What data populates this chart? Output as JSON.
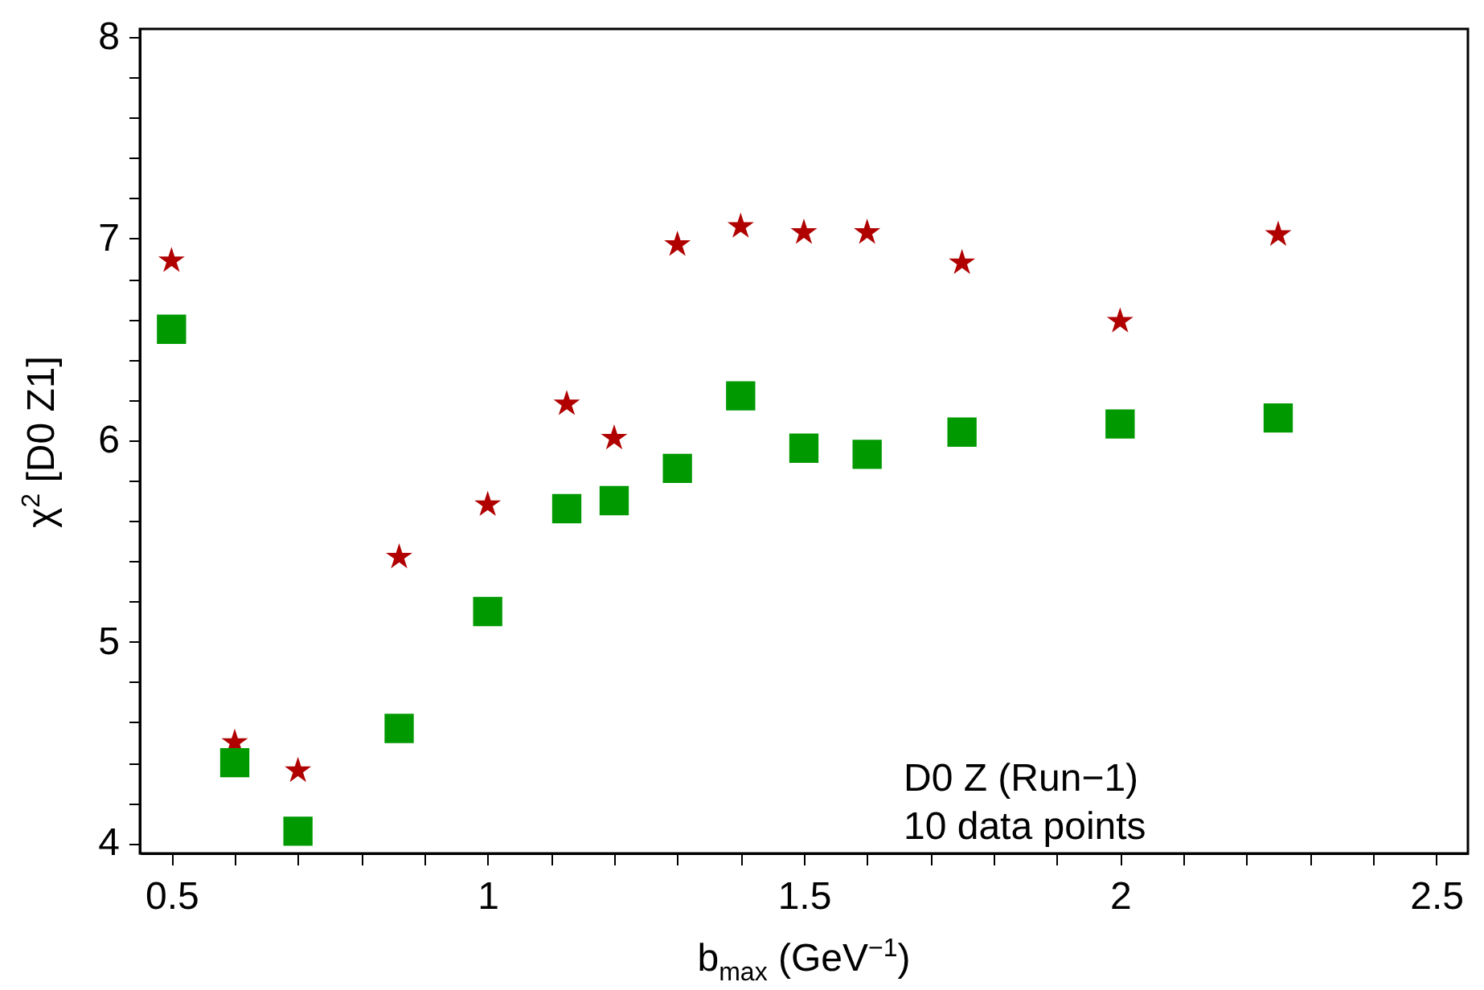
{
  "chart_data": {
    "type": "scatter",
    "xlabel": "b$_{max}$ (GeV$^{−1}$)",
    "ylabel": "χ$^{2}$ [D0 Z1]",
    "annotations": [
      "D0 Z (Run−1)",
      "10 data points"
    ],
    "x": [
      0.5,
      0.6,
      0.7,
      0.86,
      1.0,
      1.125,
      1.2,
      1.3,
      1.4,
      1.5,
      1.6,
      1.75,
      2.0,
      2.25
    ],
    "series": [
      {
        "color": "#b00000",
        "marker": "star",
        "values": [
          6.89,
          4.5,
          4.36,
          5.42,
          5.68,
          6.18,
          6.01,
          6.97,
          7.06,
          7.03,
          7.03,
          6.88,
          6.59,
          7.02
        ]
      },
      {
        "color": "#009900",
        "marker": "square",
        "values": [
          6.55,
          4.4,
          4.06,
          4.57,
          5.15,
          5.66,
          5.7,
          5.86,
          6.22,
          5.96,
          5.93,
          6.04,
          6.08,
          6.11
        ]
      }
    ],
    "xlim": [
      0.45,
      2.55
    ],
    "ylim": [
      3.95,
      8.04
    ],
    "xticks": [
      0.5,
      {
        "value": 0.6,
        "label": null
      },
      {
        "value": 0.7,
        "label": null
      },
      {
        "value": 0.8,
        "label": null
      },
      {
        "value": 0.9,
        "label": null
      },
      1,
      {
        "value": 1.1,
        "label": null
      },
      {
        "value": 1.2,
        "label": null
      },
      {
        "value": 1.3,
        "label": null
      },
      {
        "value": 1.4,
        "label": null
      },
      1.5,
      {
        "value": 1.6,
        "label": null
      },
      {
        "value": 1.7,
        "label": null
      },
      {
        "value": 1.8,
        "label": null
      },
      {
        "value": 1.9,
        "label": null
      },
      2,
      {
        "value": 2.1,
        "label": null
      },
      {
        "value": 2.2,
        "label": null
      },
      {
        "value": 2.3,
        "label": null
      },
      {
        "value": 2.4,
        "label": null
      },
      2.5
    ],
    "yticks": [
      4,
      {
        "value": 4.2,
        "label": null
      },
      {
        "value": 4.4,
        "label": null
      },
      {
        "value": 4.6,
        "label": null
      },
      {
        "value": 4.8,
        "label": null
      },
      5,
      {
        "value": 5.2,
        "label": null
      },
      {
        "value": 5.4,
        "label": null
      },
      {
        "value": 5.6,
        "label": null
      },
      {
        "value": 5.8,
        "label": null
      },
      6,
      {
        "value": 6.2,
        "label": null
      },
      {
        "value": 6.4,
        "label": null
      },
      {
        "value": 6.6,
        "label": null
      },
      {
        "value": 6.8,
        "label": null
      },
      7,
      {
        "value": 7.2,
        "label": null
      },
      {
        "value": 7.4,
        "label": null
      },
      {
        "value": 7.6,
        "label": null
      },
      {
        "value": 7.8,
        "label": null
      },
      8
    ],
    "grid": false
  }
}
